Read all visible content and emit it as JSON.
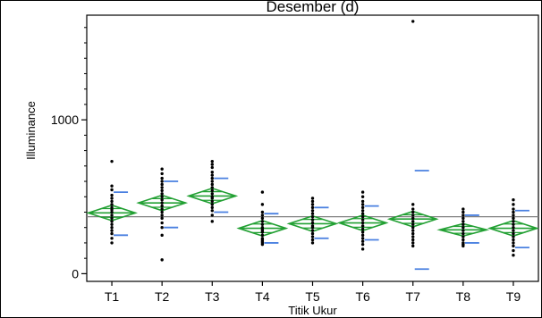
{
  "chart_data": {
    "type": "scatter",
    "title": "Desember (d)",
    "xlabel": "Titik Ukur",
    "ylabel": "Illuminance",
    "categories": [
      "T1",
      "T2",
      "T3",
      "T4",
      "T5",
      "T6",
      "T7",
      "T8",
      "T9"
    ],
    "ylim": [
      -50,
      1680
    ],
    "yticks": [
      0,
      1000
    ],
    "grand_mean": 370,
    "groups": [
      {
        "name": "T1",
        "mean": 395,
        "ci": [
          345,
          445
        ],
        "sd": [
          250,
          530
        ],
        "points": [
          730,
          570,
          545,
          510,
          490,
          470,
          450,
          430,
          415,
          400,
          380,
          360,
          340,
          320,
          300,
          280,
          260,
          230,
          200
        ]
      },
      {
        "name": "T2",
        "mean": 460,
        "ci": [
          410,
          510
        ],
        "sd": [
          300,
          600
        ],
        "points": [
          680,
          650,
          620,
          600,
          580,
          560,
          540,
          520,
          500,
          480,
          460,
          440,
          420,
          400,
          380,
          360,
          330,
          300,
          250,
          90
        ]
      },
      {
        "name": "T3",
        "mean": 505,
        "ci": [
          455,
          555
        ],
        "sd": [
          400,
          620
        ],
        "points": [
          730,
          710,
          690,
          660,
          640,
          620,
          600,
          580,
          560,
          540,
          520,
          500,
          490,
          470,
          450,
          430,
          410,
          380,
          340
        ]
      },
      {
        "name": "T4",
        "mean": 295,
        "ci": [
          245,
          345
        ],
        "sd": [
          200,
          390
        ],
        "points": [
          530,
          450,
          400,
          380,
          360,
          340,
          320,
          300,
          290,
          280,
          270,
          250,
          230,
          220,
          210,
          200,
          190
        ]
      },
      {
        "name": "T5",
        "mean": 325,
        "ci": [
          275,
          375
        ],
        "sd": [
          230,
          430
        ],
        "points": [
          490,
          470,
          450,
          430,
          410,
          390,
          370,
          350,
          330,
          310,
          300,
          280,
          260,
          240,
          220,
          200
        ]
      },
      {
        "name": "T6",
        "mean": 330,
        "ci": [
          280,
          380
        ],
        "sd": [
          220,
          440
        ],
        "points": [
          530,
          500,
          470,
          450,
          430,
          410,
          390,
          370,
          350,
          330,
          310,
          290,
          270,
          250,
          230,
          210,
          190,
          160
        ]
      },
      {
        "name": "T7",
        "mean": 355,
        "ci": [
          305,
          405
        ],
        "sd": [
          30,
          670
        ],
        "points": [
          1640,
          450,
          420,
          400,
          380,
          360,
          340,
          320,
          300,
          280,
          260,
          240,
          220,
          200,
          180
        ]
      },
      {
        "name": "T8",
        "mean": 285,
        "ci": [
          245,
          325
        ],
        "sd": [
          200,
          380
        ],
        "points": [
          420,
          400,
          380,
          360,
          340,
          320,
          300,
          280,
          260,
          240,
          220,
          200,
          190,
          180
        ]
      },
      {
        "name": "T9",
        "mean": 295,
        "ci": [
          245,
          345
        ],
        "sd": [
          170,
          410
        ],
        "points": [
          480,
          450,
          420,
          400,
          380,
          360,
          340,
          320,
          300,
          280,
          260,
          240,
          220,
          200,
          180,
          150,
          120
        ]
      }
    ],
    "colors": {
      "diamond": "#22a033",
      "sd_marks": "#4a80e0",
      "grand_mean_line": "#808080",
      "points": "#000000",
      "frame": "#000000"
    }
  }
}
